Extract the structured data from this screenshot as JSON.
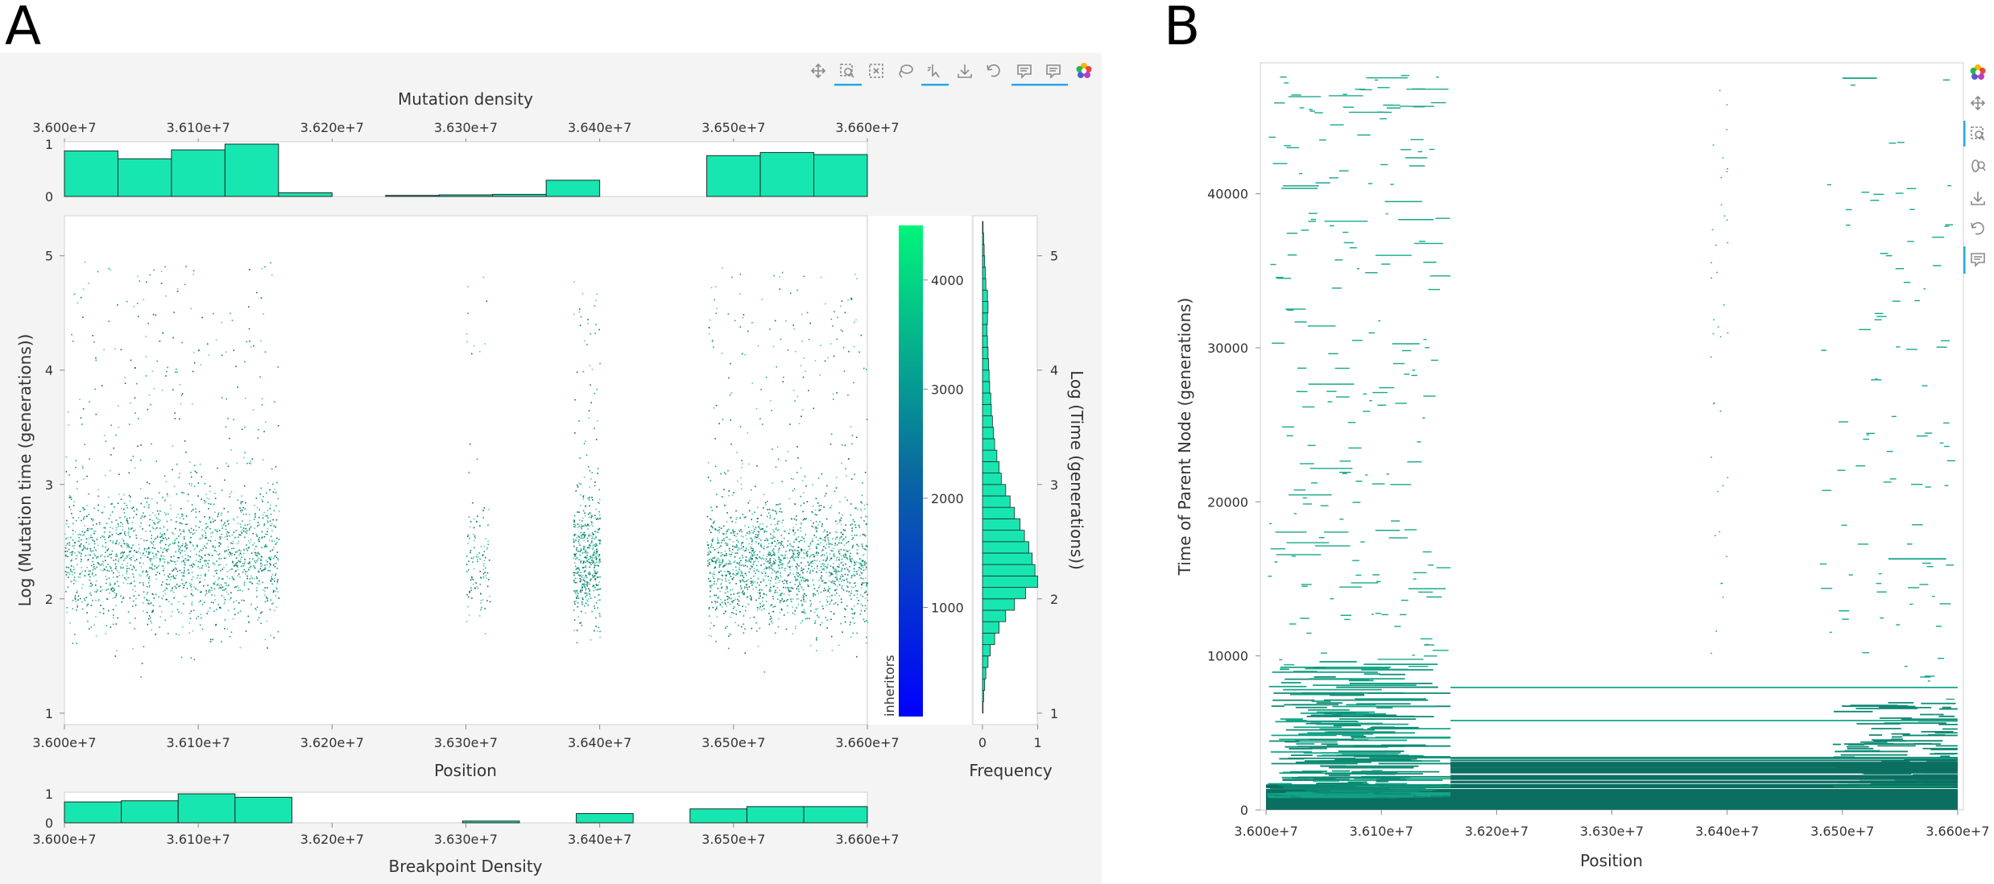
{
  "panels": {
    "a_letter": "A",
    "b_letter": "B"
  },
  "colors": {
    "bar": "#17e6b0",
    "bar_edge": "#1e2b28",
    "scatter": "#0f8f7a",
    "line": "#0b6e60",
    "cb_top": "#00f57a",
    "cb_bottom": "#0000ff",
    "toolbar_active": "#26aae1"
  },
  "toolbar_a": {
    "icons": [
      "pan-icon",
      "box-zoom-icon",
      "box-select-icon",
      "lasso-icon",
      "tap-icon",
      "save-icon",
      "reset-icon",
      "hover-icon",
      "hover-icon-2",
      "bokeh-logo-icon"
    ]
  },
  "toolbar_b": {
    "icons": [
      "bokeh-logo-icon",
      "pan-icon",
      "box-zoom-icon",
      "wheel-zoom-icon",
      "save-icon",
      "reset-icon",
      "hover-icon"
    ]
  },
  "chart_data": [
    {
      "type": "bar",
      "title": "Mutation density",
      "xlabel": "",
      "ylabel": "",
      "bin_edges": [
        36000000,
        36040000,
        36080000,
        36120000,
        36160000,
        36200000,
        36240000,
        36280000,
        36320000,
        36360000,
        36400000,
        36440000,
        36480000,
        36520000,
        36560000,
        36600000
      ],
      "values": [
        0.87,
        0.72,
        0.89,
        1.0,
        0.07,
        0.0,
        0.02,
        0.03,
        0.04,
        0.31,
        0.0,
        0.0,
        0.78,
        0.84,
        0.8
      ],
      "xlim": [
        36000000,
        36600000
      ],
      "ylim": [
        0,
        1
      ],
      "xticks": [
        "3.600e+7",
        "3.610e+7",
        "3.620e+7",
        "3.630e+7",
        "3.640e+7",
        "3.650e+7",
        "3.660e+7"
      ],
      "yticks": [
        "0",
        "1"
      ]
    },
    {
      "type": "scatter",
      "xlabel": "Position",
      "ylabel": "Log (Mutation time (generations))",
      "xlim": [
        36000000,
        36600000
      ],
      "ylim": [
        0.9,
        5.35
      ],
      "xticks": [
        "3.600e+7",
        "3.610e+7",
        "3.620e+7",
        "3.630e+7",
        "3.640e+7",
        "3.650e+7",
        "3.660e+7"
      ],
      "yticks": [
        "1",
        "2",
        "3",
        "4",
        "5"
      ],
      "clusters": [
        {
          "x": [
            36000000,
            36160000
          ],
          "y_center": 2.35,
          "spread": 0.55,
          "density": "high"
        },
        {
          "x": [
            36300000,
            36318000
          ],
          "y_center": 2.3,
          "spread": 0.4,
          "density": "low"
        },
        {
          "x": [
            36380000,
            36400000
          ],
          "y_center": 2.35,
          "spread": 0.5,
          "density": "medium"
        },
        {
          "x": [
            36480000,
            36600000
          ],
          "y_center": 2.3,
          "spread": 0.5,
          "density": "high"
        }
      ]
    },
    {
      "type": "heatmap",
      "title": "",
      "colorbar_label": "inheritors",
      "ticks": [
        "1000",
        "2000",
        "3000",
        "4000"
      ],
      "range": [
        0,
        4500
      ]
    },
    {
      "type": "bar",
      "orientation": "horizontal",
      "xlabel": "Frequency",
      "ylabel": "Log (Time (generations))",
      "ylim": [
        0.9,
        5.35
      ],
      "xlim": [
        0,
        1.05
      ],
      "xticks": [
        "0",
        "1"
      ],
      "yticks": [
        "1",
        "2",
        "3",
        "4",
        "5"
      ],
      "bin_centers": [
        1.05,
        1.15,
        1.25,
        1.35,
        1.45,
        1.55,
        1.65,
        1.75,
        1.85,
        1.95,
        2.05,
        2.15,
        2.25,
        2.35,
        2.45,
        2.55,
        2.65,
        2.75,
        2.85,
        2.95,
        3.05,
        3.15,
        3.25,
        3.35,
        3.45,
        3.55,
        3.65,
        3.75,
        3.85,
        3.95,
        4.05,
        4.15,
        4.25,
        4.35,
        4.45,
        4.55,
        4.65,
        4.75,
        4.85,
        4.95,
        5.05,
        5.15,
        5.25
      ],
      "values": [
        0.01,
        0.02,
        0.04,
        0.06,
        0.1,
        0.14,
        0.22,
        0.3,
        0.42,
        0.58,
        0.78,
        1.0,
        0.95,
        0.9,
        0.84,
        0.76,
        0.68,
        0.58,
        0.5,
        0.42,
        0.34,
        0.3,
        0.26,
        0.22,
        0.2,
        0.18,
        0.16,
        0.15,
        0.13,
        0.12,
        0.11,
        0.1,
        0.09,
        0.08,
        0.09,
        0.1,
        0.09,
        0.06,
        0.05,
        0.04,
        0.03,
        0.02,
        0.01
      ]
    },
    {
      "type": "bar",
      "title": "",
      "xlabel": "Breakpoint Density",
      "ylabel": "",
      "bin_edges": [
        36000000,
        36042500,
        36085000,
        36127500,
        36170000,
        36212500,
        36255000,
        36297500,
        36340000,
        36382500,
        36425000,
        36467500,
        36510000,
        36552500,
        36600000
      ],
      "values": [
        0.72,
        0.76,
        1.0,
        0.88,
        0.0,
        0.0,
        0.0,
        0.06,
        0.0,
        0.32,
        0.0,
        0.48,
        0.56,
        0.56
      ],
      "xlim": [
        36000000,
        36600000
      ],
      "ylim": [
        0,
        1
      ],
      "xticks": [
        "3.600e+7",
        "3.610e+7",
        "3.620e+7",
        "3.630e+7",
        "3.640e+7",
        "3.650e+7",
        "3.660e+7"
      ],
      "yticks": [
        "0",
        "1"
      ]
    },
    {
      "type": "line",
      "title": "",
      "xlabel": "Position",
      "ylabel": "Time of Parent Node (generations)",
      "xlim": [
        35995000,
        36605000
      ],
      "ylim": [
        0,
        48500
      ],
      "xticks": [
        "3.600e+7",
        "3.610e+7",
        "3.620e+7",
        "3.630e+7",
        "3.640e+7",
        "3.650e+7",
        "3.660e+7"
      ],
      "yticks": [
        "0",
        "10000",
        "20000",
        "30000",
        "40000"
      ],
      "notable_segments": [
        {
          "x": [
            36160000,
            36600000
          ],
          "y": 7950
        },
        {
          "x": [
            36160000,
            36600000
          ],
          "y": 5800
        },
        {
          "x": [
            36160000,
            36600000
          ],
          "y": 3350
        },
        {
          "x": [
            36500000,
            36530000
          ],
          "y": 47500
        },
        {
          "x": [
            36540000,
            36590000
          ],
          "y": 16300
        }
      ]
    }
  ]
}
